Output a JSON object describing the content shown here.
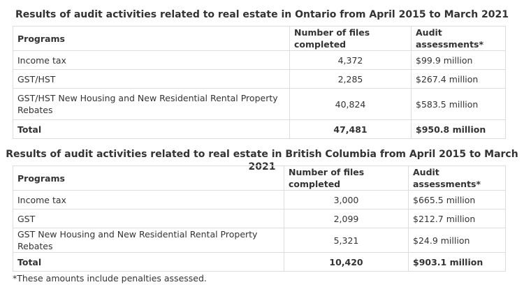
{
  "ontario": {
    "caption": "Results of audit activities related to real estate in Ontario from April 2015 to March 2021",
    "headers": [
      "Programs",
      "Number of files completed",
      "Audit assessments*"
    ],
    "rows": [
      [
        "Income tax",
        "4,372",
        "$99.9 million"
      ],
      [
        "GST/HST",
        "2,285",
        "$267.4 million"
      ],
      [
        "GST/HST New Housing and New Residential Rental Property Rebates",
        "40,824",
        "$583.5 million"
      ]
    ],
    "total": [
      "Total",
      "47,481",
      "$950.8 million"
    ]
  },
  "british_columbia": {
    "caption": "Results of audit activities related to real estate in British Columbia from April 2015 to March 2021",
    "headers": [
      "Programs",
      "Number of files completed",
      "Audit assessments*"
    ],
    "rows": [
      [
        "Income tax",
        "3,000",
        "$665.5 million"
      ],
      [
        "GST",
        "2,099",
        "$212.7 million"
      ],
      [
        "GST New Housing and New Residential Rental Property Rebates",
        "5,321",
        "$24.9 million"
      ]
    ],
    "total": [
      "Total",
      "10,420",
      "$903.1 million"
    ]
  },
  "footnote": "*These amounts include penalties assessed."
}
